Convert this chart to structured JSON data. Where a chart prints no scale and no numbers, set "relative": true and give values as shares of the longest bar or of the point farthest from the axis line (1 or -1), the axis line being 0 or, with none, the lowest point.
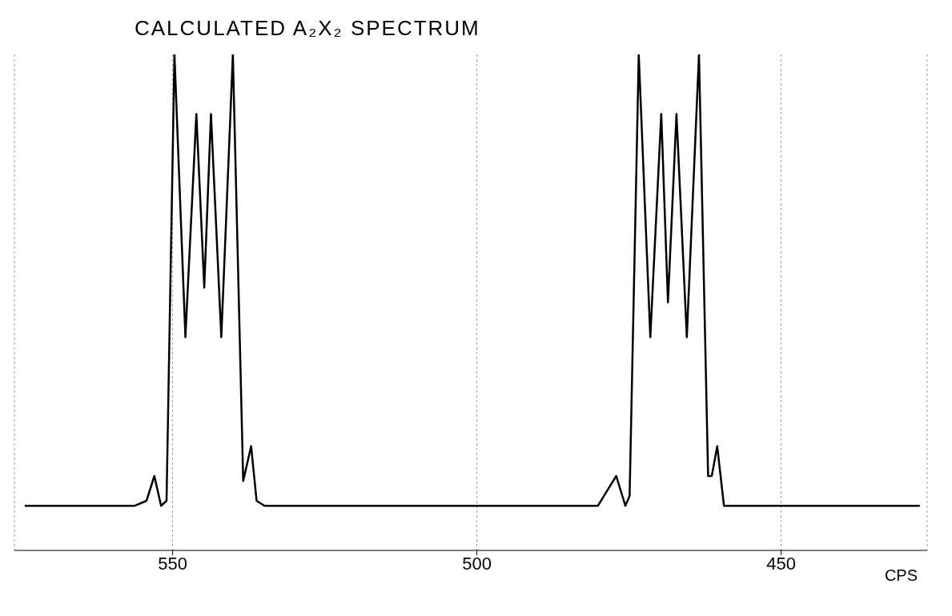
{
  "chart_data": {
    "type": "line",
    "title": "CALCULATED A₂X₂ SPECTRUM",
    "xlabel": "CPS",
    "relative": true,
    "xlim": [
      576,
      426
    ],
    "xticks": [
      550,
      500,
      450
    ],
    "grid": "x",
    "marker": "none",
    "line_style": "solid",
    "series": [
      {
        "color": "#000000",
        "x": [
          574.3,
          556.2,
          554.3,
          553.0,
          551.9,
          551.0,
          549.7,
          547.9,
          546.1,
          544.8,
          543.7,
          542.0,
          540.1,
          538.4,
          537.1,
          536.2,
          534.9,
          480.1,
          477.1,
          475.6,
          474.9,
          473.4,
          471.5,
          469.7,
          468.6,
          467.2,
          465.5,
          463.5,
          462.0,
          461.4,
          460.5,
          459.4,
          427.2
        ],
        "values": [
          0.09,
          0.09,
          0.1,
          0.15,
          0.09,
          0.1,
          1.0,
          0.43,
          0.88,
          0.53,
          0.88,
          0.43,
          1.0,
          0.14,
          0.21,
          0.1,
          0.09,
          0.09,
          0.15,
          0.09,
          0.11,
          1.0,
          0.43,
          0.88,
          0.5,
          0.88,
          0.43,
          1.0,
          0.15,
          0.15,
          0.21,
          0.09,
          0.09
        ]
      }
    ]
  }
}
